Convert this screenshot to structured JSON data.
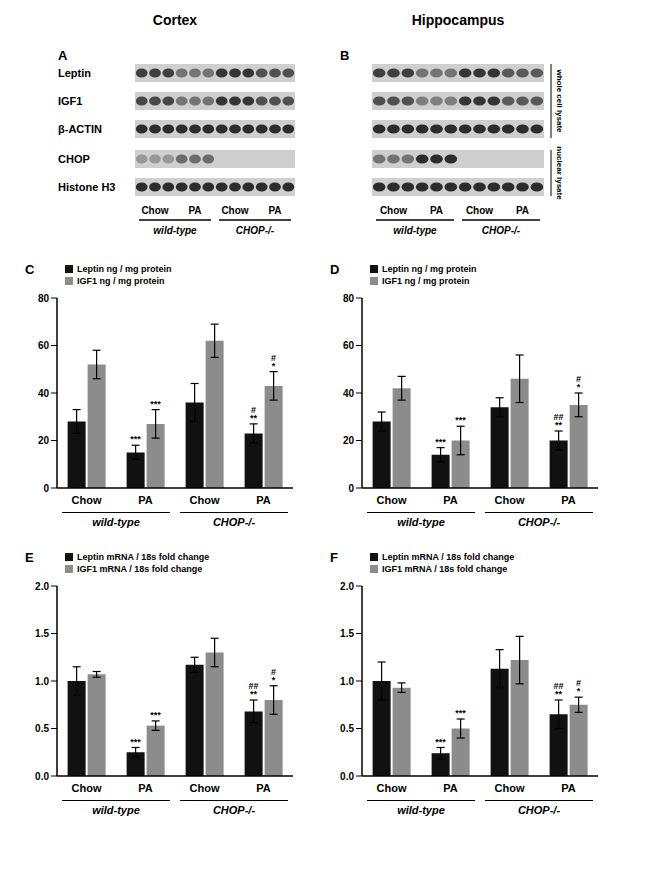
{
  "columns": [
    "Cortex",
    "Hippocampus"
  ],
  "blots": [
    {
      "panel": "A",
      "lanes": [
        "Chow",
        "PA",
        "Chow",
        "PA"
      ],
      "lane_groups": [
        "wild-type",
        "wild-type",
        "CHOP-/-",
        "CHOP-/-"
      ],
      "rows": [
        {
          "label": "Leptin",
          "intensity": [
            0.8,
            0.8,
            0.8,
            0.5,
            0.5,
            0.5,
            0.85,
            0.85,
            0.85,
            0.7,
            0.7,
            0.7
          ]
        },
        {
          "label": "IGF1",
          "intensity": [
            0.75,
            0.75,
            0.75,
            0.5,
            0.5,
            0.5,
            0.85,
            0.85,
            0.85,
            0.7,
            0.7,
            0.7
          ]
        },
        {
          "label": "β-ACTIN",
          "intensity": [
            0.9,
            0.9,
            0.9,
            0.9,
            0.9,
            0.9,
            0.9,
            0.9,
            0.9,
            0.9,
            0.9,
            0.9
          ]
        },
        {
          "label": "CHOP",
          "intensity": [
            0.3,
            0.3,
            0.3,
            0.55,
            0.55,
            0.55,
            0,
            0,
            0,
            0,
            0,
            0
          ]
        },
        {
          "label": "Histone H3",
          "intensity": [
            0.9,
            0.9,
            0.9,
            0.9,
            0.9,
            0.9,
            0.9,
            0.9,
            0.9,
            0.9,
            0.9,
            0.9
          ]
        }
      ]
    },
    {
      "panel": "B",
      "lanes": [
        "Chow",
        "PA",
        "Chow",
        "PA"
      ],
      "lane_groups": [
        "wild-type",
        "wild-type",
        "CHOP-/-",
        "CHOP-/-"
      ],
      "rows": [
        {
          "intensity": [
            0.8,
            0.8,
            0.8,
            0.5,
            0.5,
            0.5,
            0.85,
            0.85,
            0.85,
            0.65,
            0.65,
            0.65
          ]
        },
        {
          "intensity": [
            0.7,
            0.7,
            0.7,
            0.45,
            0.45,
            0.45,
            0.85,
            0.85,
            0.85,
            0.65,
            0.65,
            0.65
          ]
        },
        {
          "intensity": [
            0.9,
            0.9,
            0.9,
            0.9,
            0.9,
            0.9,
            0.9,
            0.9,
            0.9,
            0.9,
            0.9,
            0.9
          ]
        },
        {
          "intensity": [
            0.5,
            0.5,
            0.5,
            0.9,
            0.9,
            0.9,
            0,
            0,
            0,
            0,
            0,
            0
          ]
        },
        {
          "intensity": [
            0.9,
            0.9,
            0.9,
            0.9,
            0.9,
            0.9,
            0.9,
            0.9,
            0.9,
            0.9,
            0.9,
            0.9
          ]
        }
      ],
      "lysates": [
        {
          "label": "whole cell lysate",
          "rows": [
            0,
            1,
            2
          ]
        },
        {
          "label": "nuclear lysate",
          "rows": [
            3,
            4
          ]
        }
      ]
    }
  ],
  "chart_data": [
    {
      "panel": "C",
      "type": "bar",
      "categories": [
        "Chow",
        "PA",
        "Chow",
        "PA"
      ],
      "group_labels": [
        "wild-type",
        "wild-type",
        "CHOP-/-",
        "CHOP-/-"
      ],
      "ylim": [
        0,
        80
      ],
      "yticks": [
        0,
        20,
        40,
        60,
        80
      ],
      "legend": "upper left",
      "series": [
        {
          "name": "Leptin ng / mg protein",
          "color": "#111111",
          "values": [
            28,
            15,
            36,
            23
          ],
          "errors": [
            5,
            3,
            8,
            4
          ],
          "annotations": [
            null,
            [
              "***"
            ],
            null,
            [
              "#",
              "**"
            ]
          ]
        },
        {
          "name": "IGF1 ng / mg protein",
          "color": "#8c8c8c",
          "values": [
            52,
            27,
            62,
            43
          ],
          "errors": [
            6,
            6,
            7,
            6
          ],
          "annotations": [
            null,
            [
              "***"
            ],
            null,
            [
              "#",
              "*"
            ]
          ]
        }
      ]
    },
    {
      "panel": "D",
      "type": "bar",
      "categories": [
        "Chow",
        "PA",
        "Chow",
        "PA"
      ],
      "group_labels": [
        "wild-type",
        "wild-type",
        "CHOP-/-",
        "CHOP-/-"
      ],
      "ylim": [
        0,
        80
      ],
      "yticks": [
        0,
        20,
        40,
        60,
        80
      ],
      "legend": "upper left",
      "series": [
        {
          "name": "Leptin ng / mg protein",
          "color": "#111111",
          "values": [
            28,
            14,
            34,
            20
          ],
          "errors": [
            4,
            3,
            4,
            4
          ],
          "annotations": [
            null,
            [
              "***"
            ],
            null,
            [
              "##",
              "**"
            ]
          ]
        },
        {
          "name": "IGF1 ng / mg protein",
          "color": "#8c8c8c",
          "values": [
            42,
            20,
            46,
            35
          ],
          "errors": [
            5,
            6,
            10,
            5
          ],
          "annotations": [
            null,
            [
              "***"
            ],
            null,
            [
              "#",
              "*"
            ]
          ]
        }
      ]
    },
    {
      "panel": "E",
      "type": "bar",
      "categories": [
        "Chow",
        "PA",
        "Chow",
        "PA"
      ],
      "group_labels": [
        "wild-type",
        "wild-type",
        "CHOP-/-",
        "CHOP-/-"
      ],
      "ylim": [
        0,
        2
      ],
      "yticks": [
        {
          "value": 0,
          "label": "0.0"
        },
        {
          "value": 0.5,
          "label": "0.5"
        },
        {
          "value": 1,
          "label": "1.0"
        },
        {
          "value": 1.5,
          "label": "1.5"
        },
        {
          "value": 2,
          "label": "2.0"
        }
      ],
      "legend": "upper left",
      "series": [
        {
          "name": "Leptin mRNA / 18s  fold change",
          "color": "#111111",
          "values": [
            1.0,
            0.25,
            1.17,
            0.68
          ],
          "errors": [
            0.15,
            0.05,
            0.08,
            0.12
          ],
          "annotations": [
            null,
            [
              "***"
            ],
            null,
            [
              "##",
              "**"
            ]
          ]
        },
        {
          "name": "IGF1 mRNA / 18s  fold change",
          "color": "#8c8c8c",
          "values": [
            1.07,
            0.53,
            1.3,
            0.8
          ],
          "errors": [
            0.03,
            0.05,
            0.15,
            0.15
          ],
          "annotations": [
            null,
            [
              "***"
            ],
            null,
            [
              "#",
              "*"
            ]
          ]
        }
      ]
    },
    {
      "panel": "F",
      "type": "bar",
      "categories": [
        "Chow",
        "PA",
        "Chow",
        "PA"
      ],
      "group_labels": [
        "wild-type",
        "wild-type",
        "CHOP-/-",
        "CHOP-/-"
      ],
      "ylim": [
        0,
        2
      ],
      "yticks": [
        {
          "value": 0,
          "label": "0.0"
        },
        {
          "value": 0.5,
          "label": "0.5"
        },
        {
          "value": 1,
          "label": "1.0"
        },
        {
          "value": 1.5,
          "label": "1.5"
        },
        {
          "value": 2,
          "label": "2.0"
        }
      ],
      "legend": "upper left",
      "series": [
        {
          "name": "Leptin mRNA / 18s  fold change",
          "color": "#111111",
          "values": [
            1.0,
            0.24,
            1.13,
            0.65
          ],
          "errors": [
            0.2,
            0.06,
            0.2,
            0.15
          ],
          "annotations": [
            null,
            [
              "***"
            ],
            null,
            [
              "##",
              "**"
            ]
          ]
        },
        {
          "name": "IGF1 mRNA / 18s  fold change",
          "color": "#8c8c8c",
          "values": [
            0.93,
            0.5,
            1.22,
            0.75
          ],
          "errors": [
            0.05,
            0.1,
            0.25,
            0.08
          ],
          "annotations": [
            null,
            [
              "***"
            ],
            null,
            [
              "#",
              "*"
            ]
          ]
        }
      ]
    }
  ]
}
